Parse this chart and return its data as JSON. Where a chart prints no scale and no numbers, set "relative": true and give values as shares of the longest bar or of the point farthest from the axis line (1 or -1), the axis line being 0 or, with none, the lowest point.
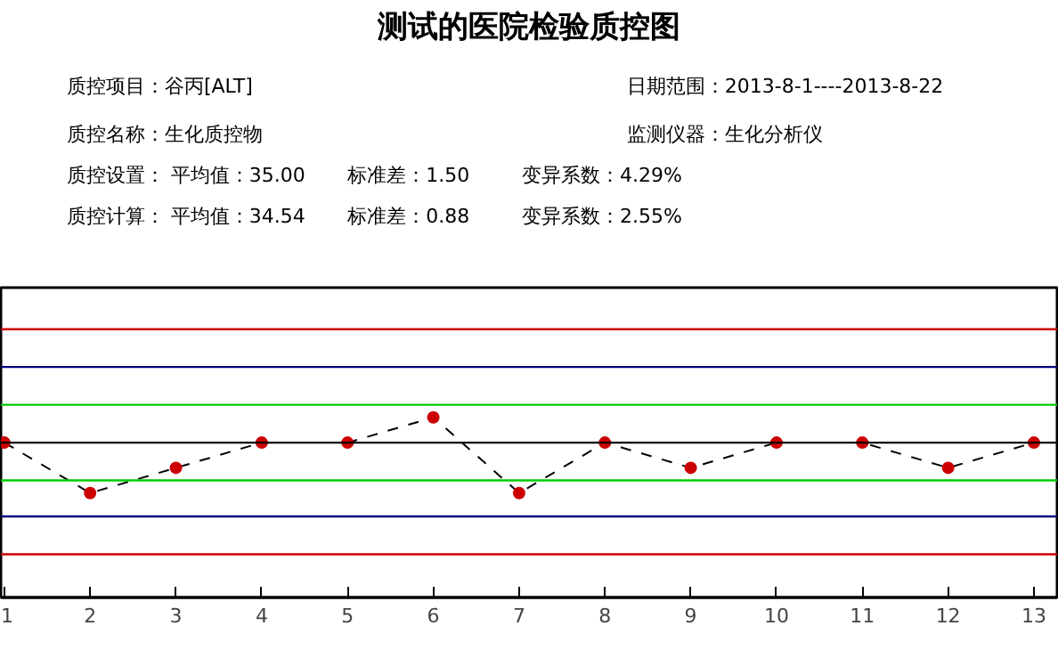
{
  "chart_data": {
    "type": "line",
    "title": "测试的医院检验质控图",
    "annotations": [
      "质控项目：谷丙[ALT]",
      "日期范围：2013-8-1----2013-8-22",
      "质控名称：生化质控物",
      "监测仪器：生化分析仪",
      "质控设置： 平均值：35.00",
      "标准差：1.50",
      "变异系数：4.29%",
      "质控计算： 平均值：34.54",
      "标准差：0.88",
      "变异系数：2.55%"
    ],
    "x": [
      1,
      2,
      3,
      4,
      5,
      6,
      7,
      8,
      9,
      10,
      11,
      12,
      13
    ],
    "series": [
      {
        "color": "#cc0000",
        "values": [
          0.86,
          0.58,
          0.72,
          0.86,
          0.86,
          1,
          0.58,
          0.86,
          0.72,
          0.86,
          0.86,
          0.72,
          0.86
        ]
      }
    ],
    "relative": true,
    "marker": "circle",
    "line_style": "dashed",
    "xlim": [
      0.96,
      13.27
    ],
    "xticks": [
      1,
      2,
      3,
      4,
      5,
      6,
      7,
      8,
      9,
      10,
      11,
      12,
      13
    ],
    "tick_labels": "x",
    "grid": false,
    "ref_lines": [
      {
        "axis": "y",
        "value": 1.49,
        "color": "#cc0000"
      },
      {
        "axis": "y",
        "value": 1.28,
        "color": "#000080"
      },
      {
        "axis": "y",
        "value": 1.07,
        "color": "#00cc00"
      },
      {
        "axis": "y",
        "value": 0.86,
        "color": "#000000"
      },
      {
        "axis": "y",
        "value": 0.65,
        "color": "#00cc00"
      },
      {
        "axis": "y",
        "value": 0.45,
        "color": "#000080"
      },
      {
        "axis": "y",
        "value": 0.24,
        "color": "#cc0000"
      }
    ]
  }
}
